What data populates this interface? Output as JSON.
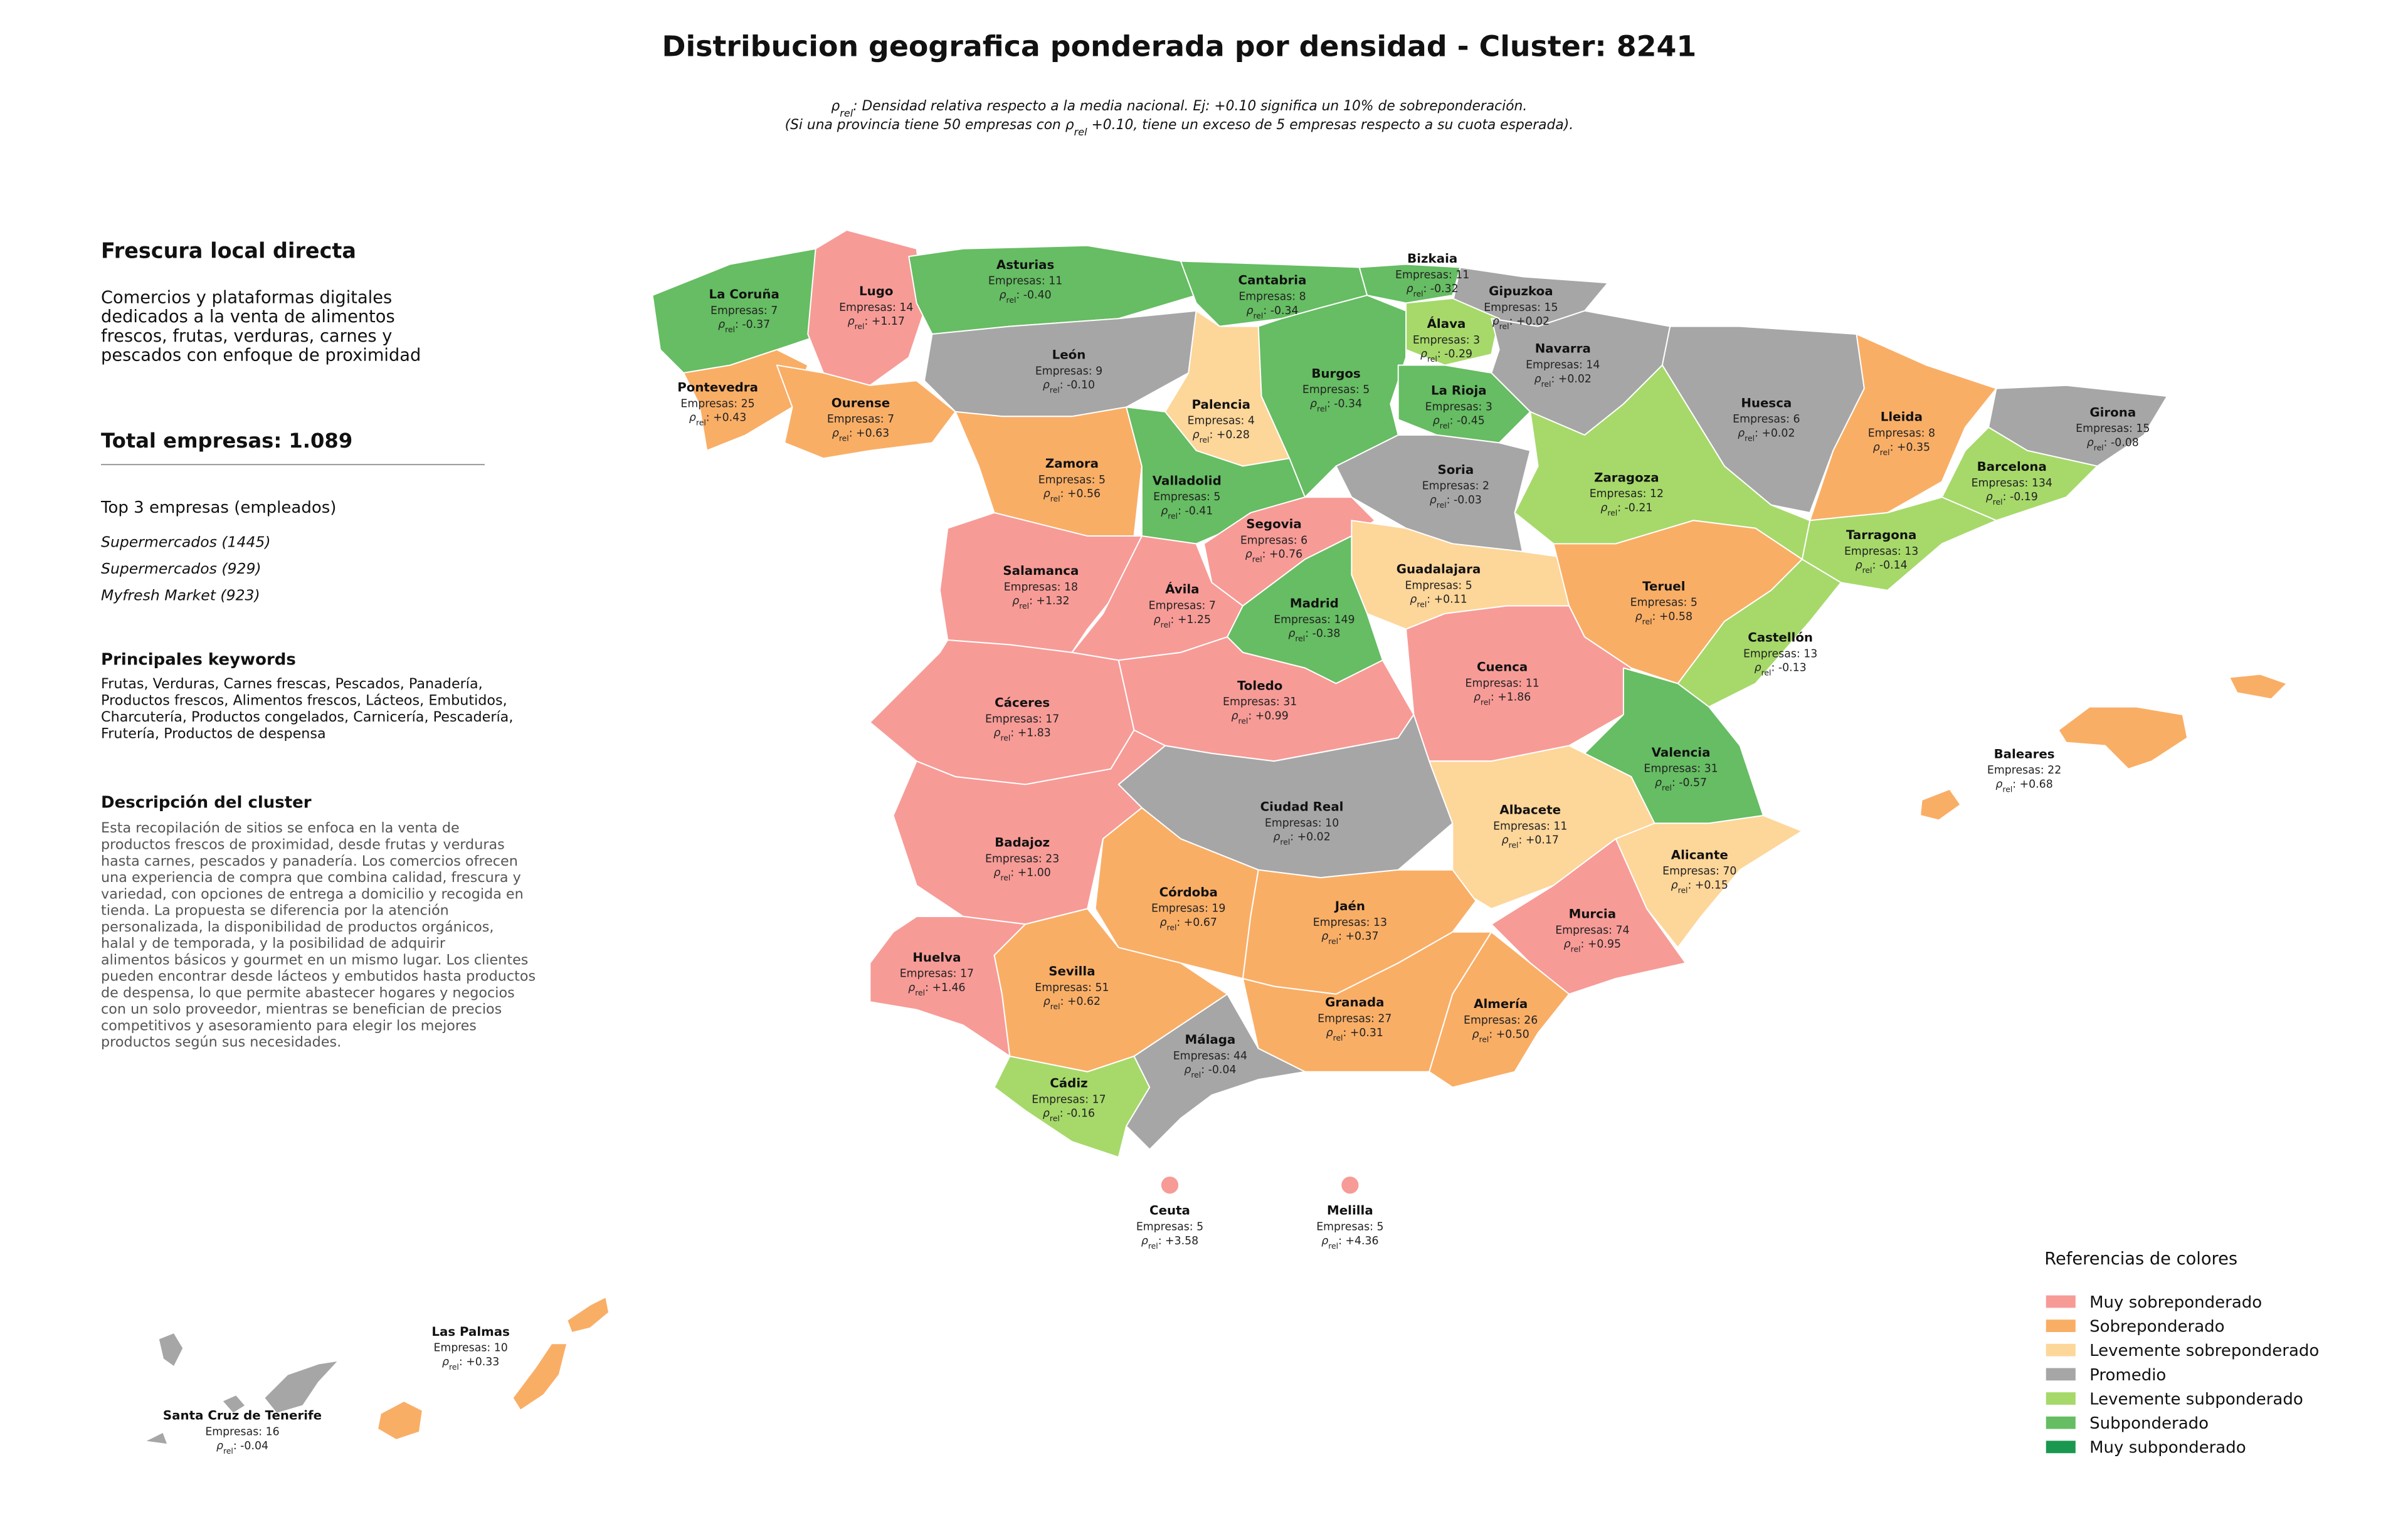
{
  "title": "Distribucion geografica ponderada por densidad - Cluster: 8241",
  "subtitle": {
    "line1": {
      "symbol": "ρ",
      "sub": "rel",
      "text": ": Densidad relativa respecto a la media nacional. Ej: +0.10 significa un 10% de sobreponderación."
    },
    "line2": {
      "before": "(Si una provincia tiene 50 empresas con ρ",
      "sub": "rel",
      "after": " +0.10, tiene un exceso de 5 empresas respecto a su cuota esperada)."
    }
  },
  "sidebar": {
    "cluster_name": "Frescura local directa",
    "summary_lines": [
      "Comercios y plataformas digitales",
      "dedicados a la venta de alimentos",
      "frescos, frutas, verduras, carnes y",
      "pescados con enfoque de proximidad"
    ],
    "total": "Total empresas: 1.089",
    "top_title": "Top 3 empresas (empleados)",
    "top_companies": [
      "Supermercados (1445)",
      "Supermercados (929)",
      "Myfresh Market (923)"
    ],
    "keywords_title": "Principales keywords",
    "keywords_lines": [
      "Frutas, Verduras, Carnes frescas, Pescados, Panadería,",
      "Productos frescos, Alimentos frescos, Lácteos, Embutidos,",
      "Charcutería, Productos congelados, Carnicería, Pescadería,",
      "Frutería, Productos de despensa"
    ],
    "description_title": "Descripción del cluster",
    "description_lines": [
      "Esta recopilación de sitios se enfoca en la venta de",
      "productos frescos de proximidad, desde frutas y verduras",
      "hasta carnes, pescados y panadería. Los comercios ofrecen",
      "una experiencia de compra que combina calidad, frescura y",
      "variedad, con opciones de entrega a domicilio y recogida en",
      "tienda. La propuesta se diferencia por la atención",
      "personalizada, la disponibilidad de productos orgánicos,",
      "halal y de temporada, y la posibilidad de adquirir",
      "alimentos básicos y gourmet en un mismo lugar. Los clientes",
      "pueden encontrar desde lácteos y embutidos hasta productos",
      "de despensa, lo que permite abastecer hogares y negocios",
      "con un solo proveedor, mientras se benefician de precios",
      "competitivos y asesoramiento para elegir los mejores",
      "productos según sus necesidades."
    ]
  },
  "province_labels": {
    "empresas": "Empresas: ",
    "symbol": "ρ",
    "sub": "rel",
    "sep": ": "
  },
  "legend": {
    "title": "Referencias de colores",
    "items": [
      {
        "label": "Muy sobreponderado",
        "color": "#f79b97"
      },
      {
        "label": "Sobreponderado",
        "color": "#f9ae66"
      },
      {
        "label": "Levemente sobreponderado",
        "color": "#fdd69a"
      },
      {
        "label": "Promedio",
        "color": "#a6a6a6"
      },
      {
        "label": "Levemente subponderado",
        "color": "#a6d96a"
      },
      {
        "label": "Subponderado",
        "color": "#66bd63"
      },
      {
        "label": "Muy subponderado",
        "color": "#1a9850"
      }
    ]
  },
  "provinces": [
    {
      "name": "La Coruña",
      "empresas": 7,
      "rho": "-0.37",
      "category": "Subponderado"
    },
    {
      "name": "Lugo",
      "empresas": 14,
      "rho": "+1.17",
      "category": "Muy sobreponderado"
    },
    {
      "name": "Pontevedra",
      "empresas": 25,
      "rho": "+0.43",
      "category": "Sobreponderado"
    },
    {
      "name": "Ourense",
      "empresas": 7,
      "rho": "+0.63",
      "category": "Sobreponderado"
    },
    {
      "name": "Asturias",
      "empresas": 11,
      "rho": "-0.40",
      "category": "Subponderado"
    },
    {
      "name": "Cantabria",
      "empresas": 8,
      "rho": "-0.34",
      "category": "Subponderado"
    },
    {
      "name": "Bizkaia",
      "empresas": 11,
      "rho": "-0.32",
      "category": "Subponderado"
    },
    {
      "name": "Gipuzkoa",
      "empresas": 15,
      "rho": "+0.02",
      "category": "Promedio"
    },
    {
      "name": "Álava",
      "empresas": 3,
      "rho": "-0.29",
      "category": "Levemente subponderado"
    },
    {
      "name": "Navarra",
      "empresas": 14,
      "rho": "+0.02",
      "category": "Promedio"
    },
    {
      "name": "León",
      "empresas": 9,
      "rho": "-0.10",
      "category": "Promedio"
    },
    {
      "name": "Palencia",
      "empresas": 4,
      "rho": "+0.28",
      "category": "Levemente sobreponderado"
    },
    {
      "name": "Burgos",
      "empresas": 5,
      "rho": "-0.34",
      "category": "Subponderado"
    },
    {
      "name": "La Rioja",
      "empresas": 3,
      "rho": "-0.45",
      "category": "Subponderado"
    },
    {
      "name": "Huesca",
      "empresas": 6,
      "rho": "+0.02",
      "category": "Promedio"
    },
    {
      "name": "Lleida",
      "empresas": 8,
      "rho": "+0.35",
      "category": "Sobreponderado"
    },
    {
      "name": "Girona",
      "empresas": 15,
      "rho": "-0.08",
      "category": "Promedio"
    },
    {
      "name": "Barcelona",
      "empresas": 134,
      "rho": "-0.19",
      "category": "Levemente subponderado"
    },
    {
      "name": "Tarragona",
      "empresas": 13,
      "rho": "-0.14",
      "category": "Levemente subponderado"
    },
    {
      "name": "Zaragoza",
      "empresas": 12,
      "rho": "-0.21",
      "category": "Levemente subponderado"
    },
    {
      "name": "Soria",
      "empresas": 2,
      "rho": "-0.03",
      "category": "Promedio"
    },
    {
      "name": "Zamora",
      "empresas": 5,
      "rho": "+0.56",
      "category": "Sobreponderado"
    },
    {
      "name": "Valladolid",
      "empresas": 5,
      "rho": "-0.41",
      "category": "Subponderado"
    },
    {
      "name": "Segovia",
      "empresas": 6,
      "rho": "+0.76",
      "category": "Muy sobreponderado"
    },
    {
      "name": "Salamanca",
      "empresas": 18,
      "rho": "+1.32",
      "category": "Muy sobreponderado"
    },
    {
      "name": "Ávila",
      "empresas": 7,
      "rho": "+1.25",
      "category": "Muy sobreponderado"
    },
    {
      "name": "Guadalajara",
      "empresas": 5,
      "rho": "+0.11",
      "category": "Levemente sobreponderado"
    },
    {
      "name": "Madrid",
      "empresas": 149,
      "rho": "-0.38",
      "category": "Subponderado"
    },
    {
      "name": "Teruel",
      "empresas": 5,
      "rho": "+0.58",
      "category": "Sobreponderado"
    },
    {
      "name": "Castellón",
      "empresas": 13,
      "rho": "-0.13",
      "category": "Levemente subponderado"
    },
    {
      "name": "Cáceres",
      "empresas": 17,
      "rho": "+1.83",
      "category": "Muy sobreponderado"
    },
    {
      "name": "Toledo",
      "empresas": 31,
      "rho": "+0.99",
      "category": "Muy sobreponderado"
    },
    {
      "name": "Cuenca",
      "empresas": 11,
      "rho": "+1.86",
      "category": "Muy sobreponderado"
    },
    {
      "name": "Valencia",
      "empresas": 31,
      "rho": "-0.57",
      "category": "Subponderado"
    },
    {
      "name": "Ciudad Real",
      "empresas": 10,
      "rho": "+0.02",
      "category": "Promedio"
    },
    {
      "name": "Albacete",
      "empresas": 11,
      "rho": "+0.17",
      "category": "Levemente sobreponderado"
    },
    {
      "name": "Alicante",
      "empresas": 70,
      "rho": "+0.15",
      "category": "Levemente sobreponderado"
    },
    {
      "name": "Murcia",
      "empresas": 74,
      "rho": "+0.95",
      "category": "Muy sobreponderado"
    },
    {
      "name": "Badajoz",
      "empresas": 23,
      "rho": "+1.00",
      "category": "Muy sobreponderado"
    },
    {
      "name": "Córdoba",
      "empresas": 19,
      "rho": "+0.67",
      "category": "Sobreponderado"
    },
    {
      "name": "Jaén",
      "empresas": 13,
      "rho": "+0.37",
      "category": "Sobreponderado"
    },
    {
      "name": "Granada",
      "empresas": 27,
      "rho": "+0.31",
      "category": "Sobreponderado"
    },
    {
      "name": "Almería",
      "empresas": 26,
      "rho": "+0.50",
      "category": "Sobreponderado"
    },
    {
      "name": "Huelva",
      "empresas": 17,
      "rho": "+1.46",
      "category": "Muy sobreponderado"
    },
    {
      "name": "Sevilla",
      "empresas": 51,
      "rho": "+0.62",
      "category": "Sobreponderado"
    },
    {
      "name": "Cádiz",
      "empresas": 17,
      "rho": "-0.16",
      "category": "Levemente subponderado"
    },
    {
      "name": "Málaga",
      "empresas": 44,
      "rho": "-0.04",
      "category": "Promedio"
    },
    {
      "name": "Baleares",
      "empresas": 22,
      "rho": "+0.68",
      "category": "Sobreponderado"
    },
    {
      "name": "Las Palmas",
      "empresas": 10,
      "rho": "+0.33",
      "category": "Sobreponderado"
    },
    {
      "name": "Santa Cruz de Tenerife",
      "empresas": 16,
      "rho": "-0.04",
      "category": "Promedio"
    },
    {
      "name": "Ceuta",
      "empresas": 5,
      "rho": "+3.58",
      "category": "Muy sobreponderado"
    },
    {
      "name": "Melilla",
      "empresas": 5,
      "rho": "+4.36",
      "category": "Muy sobreponderado"
    }
  ]
}
